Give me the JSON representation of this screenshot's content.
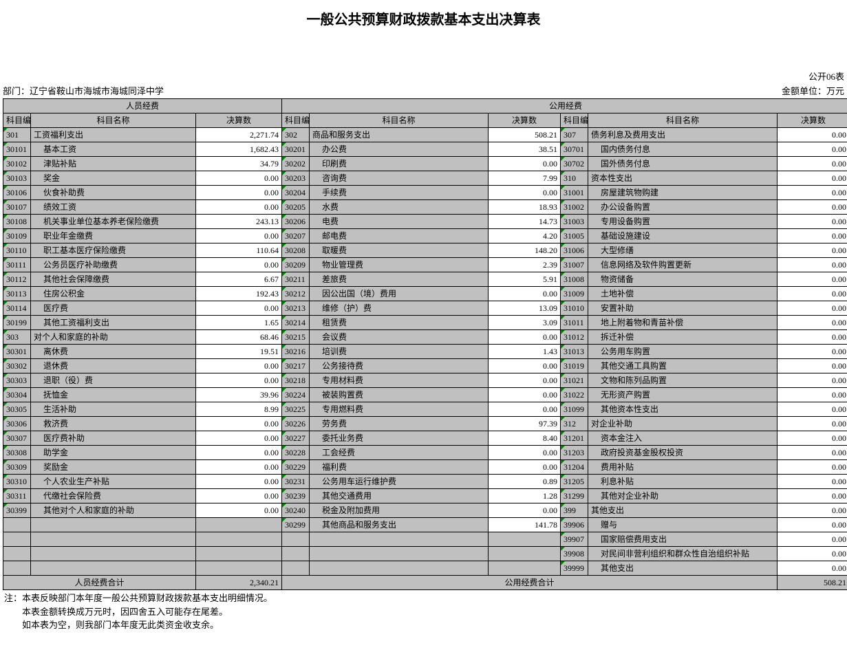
{
  "title": "一般公共预算财政拨款基本支出决算表",
  "form_code": "公开06表",
  "dept_label": "部门：辽宁省鞍山市海城市海城同泽中学",
  "unit_label": "金额单位：万元",
  "group1_header": "人员经费",
  "group2_header": "公用经费",
  "headers": {
    "code": "科目编码",
    "name": "科目名称",
    "num": "决算数"
  },
  "col1": [
    {
      "code": "301",
      "name": "工资福利支出",
      "num": "2,271.74",
      "indent": 0
    },
    {
      "code": "30101",
      "name": "基本工资",
      "num": "1,682.43",
      "indent": 1
    },
    {
      "code": "30102",
      "name": "津贴补贴",
      "num": "34.79",
      "indent": 1
    },
    {
      "code": "30103",
      "name": "奖金",
      "num": "0.00",
      "indent": 1
    },
    {
      "code": "30106",
      "name": "伙食补助费",
      "num": "0.00",
      "indent": 1
    },
    {
      "code": "30107",
      "name": "绩效工资",
      "num": "0.00",
      "indent": 1
    },
    {
      "code": "30108",
      "name": "机关事业单位基本养老保险缴费",
      "num": "243.13",
      "indent": 1
    },
    {
      "code": "30109",
      "name": "职业年金缴费",
      "num": "0.00",
      "indent": 1
    },
    {
      "code": "30110",
      "name": "职工基本医疗保险缴费",
      "num": "110.64",
      "indent": 1
    },
    {
      "code": "30111",
      "name": "公务员医疗补助缴费",
      "num": "0.00",
      "indent": 1
    },
    {
      "code": "30112",
      "name": "其他社会保障缴费",
      "num": "6.67",
      "indent": 1
    },
    {
      "code": "30113",
      "name": "住房公积金",
      "num": "192.43",
      "indent": 1
    },
    {
      "code": "30114",
      "name": "医疗费",
      "num": "0.00",
      "indent": 1
    },
    {
      "code": "30199",
      "name": "其他工资福利支出",
      "num": "1.65",
      "indent": 1
    },
    {
      "code": "303",
      "name": "对个人和家庭的补助",
      "num": "68.46",
      "indent": 0
    },
    {
      "code": "30301",
      "name": "离休费",
      "num": "19.51",
      "indent": 1
    },
    {
      "code": "30302",
      "name": "退休费",
      "num": "0.00",
      "indent": 1
    },
    {
      "code": "30303",
      "name": "退职（役）费",
      "num": "0.00",
      "indent": 1
    },
    {
      "code": "30304",
      "name": "抚恤金",
      "num": "39.96",
      "indent": 1
    },
    {
      "code": "30305",
      "name": "生活补助",
      "num": "8.99",
      "indent": 1
    },
    {
      "code": "30306",
      "name": "救济费",
      "num": "0.00",
      "indent": 1
    },
    {
      "code": "30307",
      "name": "医疗费补助",
      "num": "0.00",
      "indent": 1
    },
    {
      "code": "30308",
      "name": "助学金",
      "num": "0.00",
      "indent": 1
    },
    {
      "code": "30309",
      "name": "奖励金",
      "num": "0.00",
      "indent": 1
    },
    {
      "code": "30310",
      "name": "个人农业生产补贴",
      "num": "0.00",
      "indent": 1
    },
    {
      "code": "30311",
      "name": "代缴社会保险费",
      "num": "0.00",
      "indent": 1
    },
    {
      "code": "30399",
      "name": "其他对个人和家庭的补助",
      "num": "0.00",
      "indent": 1
    },
    {
      "code": "",
      "name": "",
      "num": "",
      "indent": 0
    },
    {
      "code": "",
      "name": "",
      "num": "",
      "indent": 0
    },
    {
      "code": "",
      "name": "",
      "num": "",
      "indent": 0
    },
    {
      "code": "",
      "name": "",
      "num": "",
      "indent": 0
    }
  ],
  "col2": [
    {
      "code": "302",
      "name": "商品和服务支出",
      "num": "508.21",
      "indent": 0
    },
    {
      "code": "30201",
      "name": "办公费",
      "num": "38.51",
      "indent": 1
    },
    {
      "code": "30202",
      "name": "印刷费",
      "num": "0.00",
      "indent": 1
    },
    {
      "code": "30203",
      "name": "咨询费",
      "num": "7.99",
      "indent": 1
    },
    {
      "code": "30204",
      "name": "手续费",
      "num": "0.00",
      "indent": 1
    },
    {
      "code": "30205",
      "name": "水费",
      "num": "18.93",
      "indent": 1
    },
    {
      "code": "30206",
      "name": "电费",
      "num": "14.73",
      "indent": 1
    },
    {
      "code": "30207",
      "name": "邮电费",
      "num": "4.20",
      "indent": 1
    },
    {
      "code": "30208",
      "name": "取暖费",
      "num": "148.20",
      "indent": 1
    },
    {
      "code": "30209",
      "name": "物业管理费",
      "num": "2.39",
      "indent": 1
    },
    {
      "code": "30211",
      "name": "差旅费",
      "num": "5.91",
      "indent": 1
    },
    {
      "code": "30212",
      "name": "因公出国（境）费用",
      "num": "0.00",
      "indent": 1
    },
    {
      "code": "30213",
      "name": "维修（护）费",
      "num": "13.09",
      "indent": 1
    },
    {
      "code": "30214",
      "name": "租赁费",
      "num": "3.09",
      "indent": 1
    },
    {
      "code": "30215",
      "name": "会议费",
      "num": "0.00",
      "indent": 1
    },
    {
      "code": "30216",
      "name": "培训费",
      "num": "1.43",
      "indent": 1
    },
    {
      "code": "30217",
      "name": "公务接待费",
      "num": "0.00",
      "indent": 1
    },
    {
      "code": "30218",
      "name": "专用材料费",
      "num": "0.00",
      "indent": 1
    },
    {
      "code": "30224",
      "name": "被装购置费",
      "num": "0.00",
      "indent": 1
    },
    {
      "code": "30225",
      "name": "专用燃料费",
      "num": "0.00",
      "indent": 1
    },
    {
      "code": "30226",
      "name": "劳务费",
      "num": "97.39",
      "indent": 1
    },
    {
      "code": "30227",
      "name": "委托业务费",
      "num": "8.40",
      "indent": 1
    },
    {
      "code": "30228",
      "name": "工会经费",
      "num": "0.00",
      "indent": 1
    },
    {
      "code": "30229",
      "name": "福利费",
      "num": "0.00",
      "indent": 1
    },
    {
      "code": "30231",
      "name": "公务用车运行维护费",
      "num": "0.89",
      "indent": 1
    },
    {
      "code": "30239",
      "name": "其他交通费用",
      "num": "1.28",
      "indent": 1
    },
    {
      "code": "30240",
      "name": "税金及附加费用",
      "num": "0.00",
      "indent": 1
    },
    {
      "code": "30299",
      "name": "其他商品和服务支出",
      "num": "141.78",
      "indent": 1
    },
    {
      "code": "",
      "name": "",
      "num": "",
      "indent": 0
    },
    {
      "code": "",
      "name": "",
      "num": "",
      "indent": 0
    },
    {
      "code": "",
      "name": "",
      "num": "",
      "indent": 0
    }
  ],
  "col3": [
    {
      "code": "307",
      "name": "债务利息及费用支出",
      "num": "0.00",
      "indent": 0
    },
    {
      "code": "30701",
      "name": "国内债务付息",
      "num": "0.00",
      "indent": 1
    },
    {
      "code": "30702",
      "name": "国外债务付息",
      "num": "0.00",
      "indent": 1
    },
    {
      "code": "310",
      "name": "资本性支出",
      "num": "0.00",
      "indent": 0
    },
    {
      "code": "31001",
      "name": "房屋建筑物购建",
      "num": "0.00",
      "indent": 1
    },
    {
      "code": "31002",
      "name": "办公设备购置",
      "num": "0.00",
      "indent": 1
    },
    {
      "code": "31003",
      "name": "专用设备购置",
      "num": "0.00",
      "indent": 1
    },
    {
      "code": "31005",
      "name": "基础设施建设",
      "num": "0.00",
      "indent": 1
    },
    {
      "code": "31006",
      "name": "大型修缮",
      "num": "0.00",
      "indent": 1
    },
    {
      "code": "31007",
      "name": "信息网络及软件购置更新",
      "num": "0.00",
      "indent": 1
    },
    {
      "code": "31008",
      "name": "物资储备",
      "num": "0.00",
      "indent": 1
    },
    {
      "code": "31009",
      "name": "土地补偿",
      "num": "0.00",
      "indent": 1
    },
    {
      "code": "31010",
      "name": "安置补助",
      "num": "0.00",
      "indent": 1
    },
    {
      "code": "31011",
      "name": "地上附着物和青苗补偿",
      "num": "0.00",
      "indent": 1
    },
    {
      "code": "31012",
      "name": "拆迁补偿",
      "num": "0.00",
      "indent": 1
    },
    {
      "code": "31013",
      "name": "公务用车购置",
      "num": "0.00",
      "indent": 1
    },
    {
      "code": "31019",
      "name": "其他交通工具购置",
      "num": "0.00",
      "indent": 1
    },
    {
      "code": "31021",
      "name": "文物和陈列品购置",
      "num": "0.00",
      "indent": 1
    },
    {
      "code": "31022",
      "name": "无形资产购置",
      "num": "0.00",
      "indent": 1
    },
    {
      "code": "31099",
      "name": "其他资本性支出",
      "num": "0.00",
      "indent": 1
    },
    {
      "code": "312",
      "name": "对企业补助",
      "num": "0.00",
      "indent": 0
    },
    {
      "code": "31201",
      "name": "资本金注入",
      "num": "0.00",
      "indent": 1
    },
    {
      "code": "31203",
      "name": "政府投资基金股权投资",
      "num": "0.00",
      "indent": 1
    },
    {
      "code": "31204",
      "name": "费用补贴",
      "num": "0.00",
      "indent": 1
    },
    {
      "code": "31205",
      "name": "利息补贴",
      "num": "0.00",
      "indent": 1
    },
    {
      "code": "31299",
      "name": "其他对企业补助",
      "num": "0.00",
      "indent": 1
    },
    {
      "code": "399",
      "name": "其他支出",
      "num": "0.00",
      "indent": 0
    },
    {
      "code": "39906",
      "name": "赠与",
      "num": "0.00",
      "indent": 1
    },
    {
      "code": "39907",
      "name": "国家赔偿费用支出",
      "num": "0.00",
      "indent": 1
    },
    {
      "code": "39908",
      "name": "对民间非营利组织和群众性自治组织补贴",
      "num": "0.00",
      "indent": 1
    },
    {
      "code": "39999",
      "name": "其他支出",
      "num": "0.00",
      "indent": 1
    }
  ],
  "total1_label": "人员经费合计",
  "total1_num": "2,340.21",
  "total2_label": "公用经费合计",
  "total2_num": "508.21",
  "notes": [
    "注：本表反映部门本年度一般公共预算财政拨款基本支出明细情况。",
    "　　本表金额转换成万元时，因四舍五入可能存在尾差。",
    "　　如本表为空，则我部门本年度无此类资金收支余。"
  ]
}
